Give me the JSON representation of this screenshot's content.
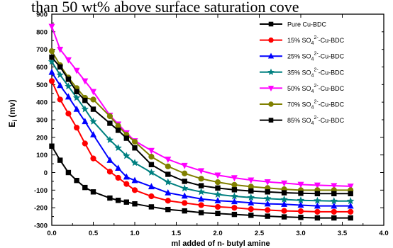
{
  "header_fragment": "than 50 wt% above surface saturation cove",
  "chart_data": {
    "type": "line",
    "xlabel": "ml added of n- butyl amine",
    "ylabel": "E",
    "ylabel_sub": "i",
    "ylabel_unit": " (mv)",
    "xlim": [
      0.0,
      4.0
    ],
    "ylim": [
      -300,
      900
    ],
    "xticks": [
      "0.0",
      "0.5",
      "1.0",
      "1.5",
      "2.0",
      "2.5",
      "3.0",
      "3.5",
      "4.0"
    ],
    "yticks": [
      "-300",
      "-200",
      "-100",
      "0",
      "100",
      "200",
      "300",
      "400",
      "500",
      "600",
      "700",
      "800",
      "900"
    ],
    "grid": false,
    "legend_position": "top-right",
    "x": [
      0.0,
      0.1,
      0.2,
      0.3,
      0.4,
      0.5,
      0.7,
      0.8,
      0.9,
      1.0,
      1.2,
      1.4,
      1.6,
      1.8,
      2.0,
      2.2,
      2.4,
      2.6,
      2.8,
      3.0,
      3.2,
      3.4,
      3.6
    ],
    "series": [
      {
        "name": "Pure Cu-BDC",
        "color": "#000000",
        "marker": "square",
        "values": [
          150,
          70,
          0,
          -45,
          -85,
          -110,
          -145,
          -158,
          -168,
          -178,
          -195,
          -210,
          -218,
          -228,
          -233,
          -238,
          -243,
          -248,
          -252,
          -255,
          -258,
          -258,
          -258
        ]
      },
      {
        "name": "15% SO",
        "name_sup": "2-",
        "name_sub": "4",
        "name_rest": "-Cu-BDC",
        "color": "#ff0000",
        "marker": "circle",
        "values": [
          520,
          415,
          335,
          255,
          165,
          80,
          5,
          -30,
          -65,
          -100,
          -135,
          -160,
          -173,
          -185,
          -195,
          -200,
          -208,
          -213,
          -218,
          -220,
          -223,
          -223,
          -223
        ]
      },
      {
        "name": "25% SO",
        "name_sup": "2-",
        "name_sub": "4",
        "name_rest": "-Cu-BDC",
        "color": "#0000ff",
        "marker": "triangle",
        "values": [
          570,
          495,
          430,
          360,
          290,
          215,
          70,
          25,
          -25,
          -45,
          -80,
          -115,
          -133,
          -150,
          -160,
          -165,
          -172,
          -178,
          -180,
          -185,
          -190,
          -190,
          -190
        ]
      },
      {
        "name": "35% SO",
        "name_sup": "2-",
        "name_sub": "4",
        "name_rest": "-Cu-BDC",
        "color": "#008080",
        "marker": "star",
        "values": [
          630,
          555,
          490,
          425,
          360,
          290,
          185,
          140,
          95,
          55,
          0,
          -55,
          -90,
          -110,
          -125,
          -135,
          -142,
          -148,
          -153,
          -158,
          -160,
          -162,
          -162
        ]
      },
      {
        "name": "50% SO",
        "name_sup": "2-",
        "name_sub": "4",
        "name_rest": "-Cu-BDC",
        "color": "#ff00ff",
        "marker": "triangle-down",
        "values": [
          830,
          700,
          640,
          580,
          520,
          460,
          325,
          275,
          225,
          180,
          125,
          75,
          40,
          10,
          -15,
          -30,
          -43,
          -53,
          -60,
          -68,
          -72,
          -75,
          -78
        ]
      },
      {
        "name": "70% SO",
        "name_sup": "2-",
        "name_sub": "4",
        "name_rest": "-Cu-BDC",
        "color": "#808000",
        "marker": "circle",
        "values": [
          690,
          610,
          540,
          480,
          425,
          415,
          320,
          265,
          215,
          175,
          90,
          35,
          -5,
          -35,
          -55,
          -70,
          -80,
          -88,
          -95,
          -100,
          -100,
          -100,
          -100
        ]
      },
      {
        "name": "85% SO",
        "name_sup": "2-",
        "name_sub": "4",
        "name_rest": "-Cu-BDC",
        "color": "#000000",
        "marker": "square",
        "values": [
          655,
          600,
          530,
          460,
          410,
          360,
          280,
          240,
          195,
          140,
          45,
          -10,
          -50,
          -75,
          -88,
          -98,
          -105,
          -110,
          -115,
          -118,
          -120,
          -120,
          -120
        ]
      }
    ]
  }
}
